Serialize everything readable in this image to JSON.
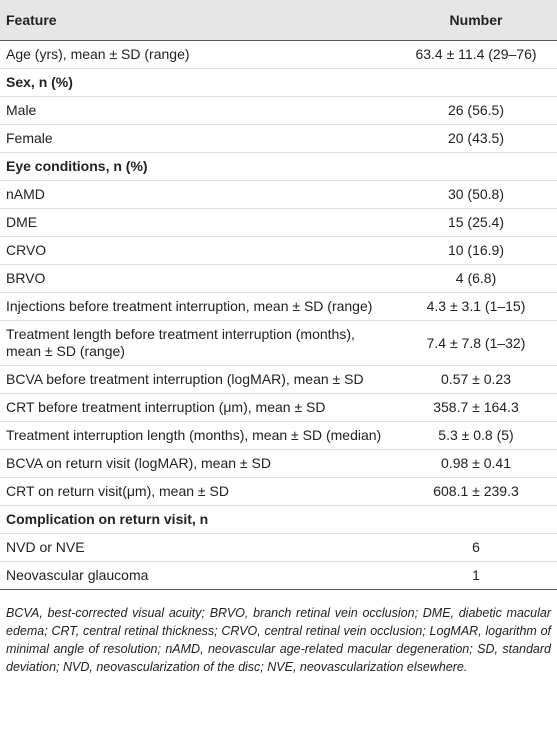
{
  "table": {
    "header": [
      "Feature",
      "Number"
    ],
    "rows": [
      [
        "Age (yrs), mean ± SD (range)",
        "63.4 ± 11.4 (29–76)"
      ],
      [
        "Sex, n (%)"
      ],
      [
        "Male",
        "26 (56.5)"
      ],
      [
        "Female",
        "20 (43.5)"
      ],
      [
        "Eye conditions, n (%)"
      ],
      [
        "nAMD",
        "30 (50.8)"
      ],
      [
        "DME",
        "15 (25.4)"
      ],
      [
        "CRVO",
        "10 (16.9)"
      ],
      [
        "BRVO",
        "4 (6.8)"
      ],
      [
        "Injections before treatment interruption, mean ± SD (range)",
        "4.3 ± 3.1 (1–15)"
      ],
      [
        "Treatment length before treatment interruption (months), mean ± SD (range)",
        "7.4 ± 7.8 (1–32)"
      ],
      [
        "BCVA before treatment interruption (logMAR), mean ± SD",
        "0.57 ± 0.23"
      ],
      [
        "CRT before treatment interruption (μm), mean ± SD",
        "358.7 ± 164.3"
      ],
      [
        "Treatment interruption length (months), mean ± SD (median)",
        "5.3 ± 0.8 (5)"
      ],
      [
        "BCVA on return visit (logMAR), mean ± SD",
        "0.98 ± 0.41"
      ],
      [
        "CRT on return visit(μm), mean ± SD",
        "608.1 ± 239.3"
      ],
      [
        "Complication on return visit, n"
      ],
      [
        "NVD or NVE",
        "6"
      ],
      [
        "Neovascular glaucoma",
        "1"
      ]
    ]
  },
  "footnote": "BCVA, best-corrected visual acuity; BRVO, branch retinal vein occlusion; DME, diabetic macular edema; CRT, central retinal thickness; CRVO, central retinal vein occlusion; LogMAR, logarithm of minimal angle of resolution; nAMD, neovascular age-related macular degeneration; SD, standard deviation; NVD, neovascularization of the disc; NVE, neovascularization elsewhere."
}
